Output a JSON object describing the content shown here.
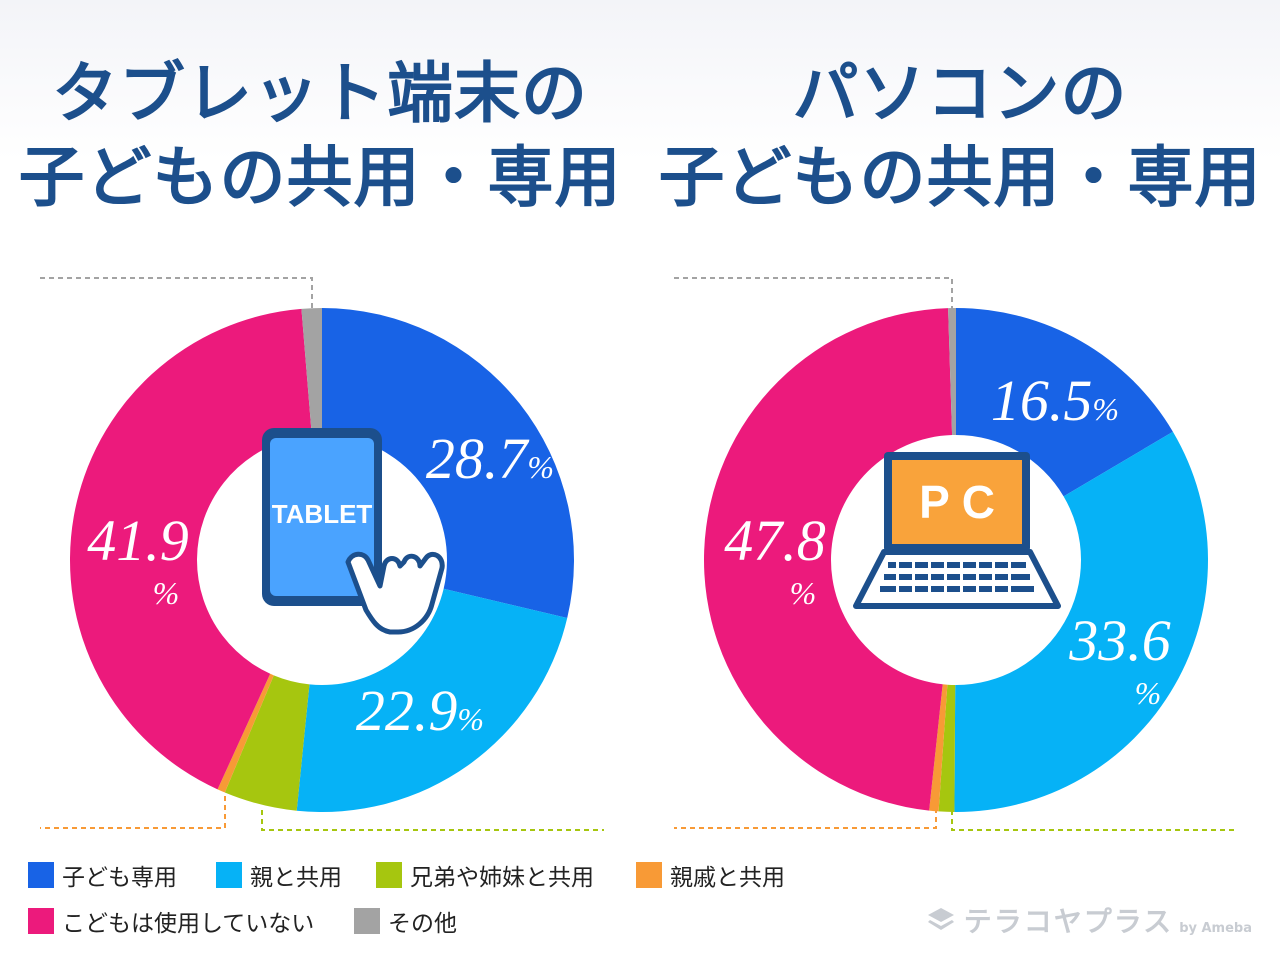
{
  "titles": {
    "left": [
      "タブレット端末の",
      "子どもの共用・専用"
    ],
    "right": [
      "パソコンの",
      "子どもの共用・専用"
    ]
  },
  "categories": [
    "子ども専用",
    "親と共用",
    "兄弟や姉妹と共用",
    "親戚と共用",
    "こどもは使用していない",
    "その他"
  ],
  "colors": {
    "子ども専用": "#1863e6",
    "親と共用": "#06b2f6",
    "兄弟や姉妹と共用": "#a6c60f",
    "親戚と共用": "#f89a36",
    "こどもは使用していない": "#ec1a7c",
    "その他": "#a3a3a3",
    "title": "#1c4f8c"
  },
  "icons": {
    "left": "tablet-with-pointing-hand-icon",
    "right": "laptop-pc-icon"
  },
  "icon_labels": {
    "left": "TABLET",
    "right": "P C"
  },
  "chart_data": [
    {
      "type": "pie",
      "title": "タブレット端末の子どもの共用・専用",
      "unit": "%",
      "series": [
        {
          "values": [
            {
              "label": "子ども専用",
              "value": 28.7
            },
            {
              "label": "親と共用",
              "value": 22.9
            },
            {
              "label": "兄弟や姉妹と共用",
              "value": 4.7
            },
            {
              "label": "親戚と共用",
              "value": 0.5
            },
            {
              "label": "こどもは使用していない",
              "value": 41.9
            },
            {
              "label": "その他",
              "value": 1.3
            }
          ]
        }
      ]
    },
    {
      "type": "pie",
      "title": "パソコンの子どもの共用・専用",
      "unit": "%",
      "series": [
        {
          "values": [
            {
              "label": "子ども専用",
              "value": 16.5
            },
            {
              "label": "親と共用",
              "value": 33.6
            },
            {
              "label": "兄弟や姉妹と共用",
              "value": 1.0
            },
            {
              "label": "親戚と共用",
              "value": 0.6
            },
            {
              "label": "こどもは使用していない",
              "value": 47.8
            },
            {
              "label": "その他",
              "value": 0.5
            }
          ]
        }
      ]
    }
  ],
  "brand": {
    "name": "テラコヤプラス",
    "suffix": "by Ameba"
  }
}
